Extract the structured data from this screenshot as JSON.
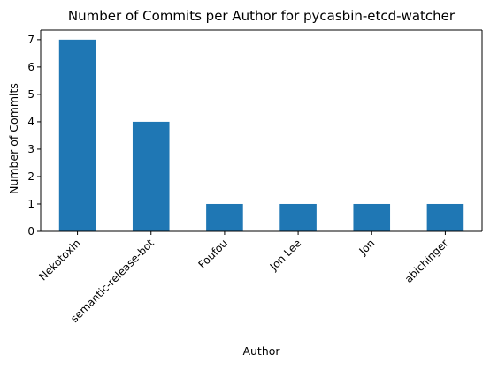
{
  "chart_data": {
    "type": "bar",
    "title": "Number of Commits per Author for pycasbin-etcd-watcher",
    "xlabel": "Author",
    "ylabel": "Number of Commits",
    "categories": [
      "Nekotoxin",
      "semantic-release-bot",
      "Foufou",
      "Jon Lee",
      "Jon",
      "abichinger"
    ],
    "values": [
      7,
      4,
      1,
      1,
      1,
      1
    ],
    "ylim": [
      0,
      7.35
    ],
    "yticks": [
      0,
      1,
      2,
      3,
      4,
      5,
      6,
      7
    ],
    "grid": false,
    "legend": "none",
    "colors": {
      "bar": "#1f77b4",
      "axis": "#000000",
      "background": "#ffffff"
    }
  }
}
